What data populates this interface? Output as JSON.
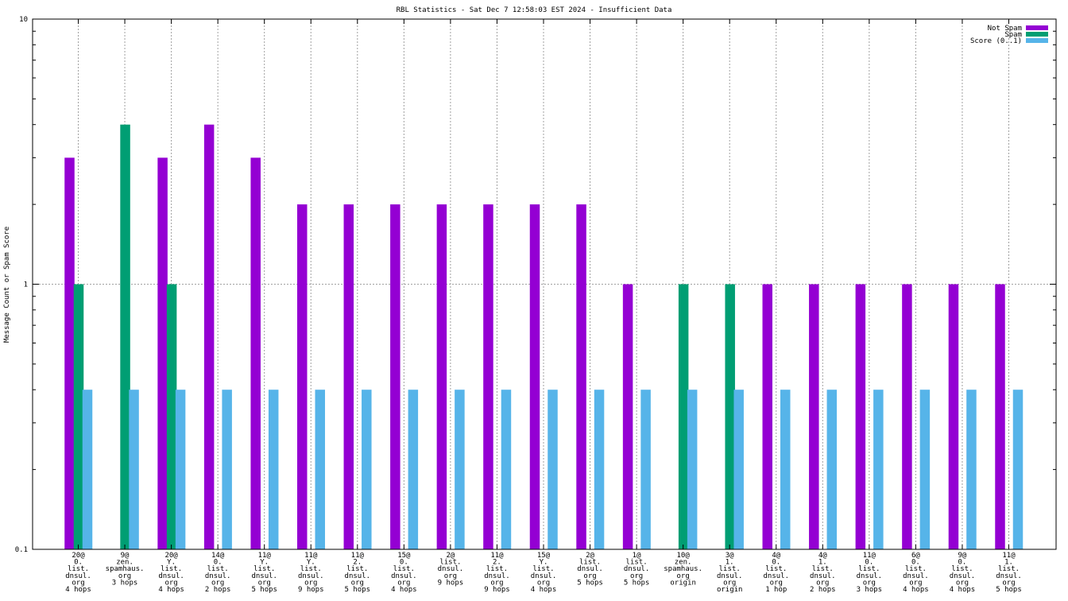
{
  "chart_data": {
    "type": "bar",
    "title": "RBL Statistics - Sat Dec  7 12:58:03 EST 2024 - Insufficient Data",
    "xlabel": "",
    "ylabel": "Message Count or Spam Score",
    "y_scale": "log",
    "ylim": [
      0.1,
      10
    ],
    "y_ticks": [
      "0.1",
      "1",
      "10"
    ],
    "grid": true,
    "legend_position": "top-right",
    "categories": [
      [
        "20@",
        "0.",
        "list.",
        "dnsul.",
        "org",
        "4 hops"
      ],
      [
        "9@",
        "zen.",
        "spamhaus.",
        "org",
        "3 hops"
      ],
      [
        "20@",
        "Y.",
        "list.",
        "dnsul.",
        "org",
        "4 hops"
      ],
      [
        "14@",
        "0.",
        "list.",
        "dnsul.",
        "org",
        "2 hops"
      ],
      [
        "11@",
        "Y.",
        "list.",
        "dnsul.",
        "org",
        "5 hops"
      ],
      [
        "11@",
        "Y.",
        "list.",
        "dnsul.",
        "org",
        "9 hops"
      ],
      [
        "11@",
        "2.",
        "list.",
        "dnsul.",
        "org",
        "5 hops"
      ],
      [
        "15@",
        "0.",
        "list.",
        "dnsul.",
        "org",
        "4 hops"
      ],
      [
        "2@",
        "list.",
        "dnsul.",
        "org",
        "9 hops"
      ],
      [
        "11@",
        "2.",
        "list.",
        "dnsul.",
        "org",
        "9 hops"
      ],
      [
        "15@",
        "Y.",
        "list.",
        "dnsul.",
        "org",
        "4 hops"
      ],
      [
        "2@",
        "list.",
        "dnsul.",
        "org",
        "5 hops"
      ],
      [
        "1@",
        "list.",
        "dnsul.",
        "org",
        "5 hops"
      ],
      [
        "10@",
        "zen.",
        "spamhaus.",
        "org",
        "origin"
      ],
      [
        "3@",
        "1.",
        "list.",
        "dnsul.",
        "org",
        "origin"
      ],
      [
        "4@",
        "0.",
        "list.",
        "dnsul.",
        "org",
        "1 hop"
      ],
      [
        "4@",
        "1.",
        "list.",
        "dnsul.",
        "org",
        "2 hops"
      ],
      [
        "11@",
        "0.",
        "list.",
        "dnsul.",
        "org",
        "3 hops"
      ],
      [
        "6@",
        "0.",
        "list.",
        "dnsul.",
        "org",
        "4 hops"
      ],
      [
        "9@",
        "0.",
        "list.",
        "dnsul.",
        "org",
        "4 hops"
      ],
      [
        "11@",
        "1.",
        "list.",
        "dnsul.",
        "org",
        "5 hops"
      ]
    ],
    "series": [
      {
        "name": "Not Spam",
        "color": "#9400d3",
        "values": [
          3,
          0,
          3,
          4,
          3,
          2,
          2,
          2,
          2,
          2,
          2,
          2,
          1,
          0,
          0,
          1,
          1,
          1,
          1,
          1,
          1
        ]
      },
      {
        "name": "Spam",
        "color": "#009e73",
        "values": [
          1,
          4,
          1,
          0,
          0,
          0,
          0,
          0,
          0,
          0,
          0,
          0,
          0,
          1,
          1,
          0,
          0,
          0,
          0,
          0,
          0
        ]
      },
      {
        "name": "Score (0..1)",
        "color": "#56b4e9",
        "values": [
          0.4,
          0.4,
          0.4,
          0.4,
          0.4,
          0.4,
          0.4,
          0.4,
          0.4,
          0.4,
          0.4,
          0.4,
          0.4,
          0.4,
          0.4,
          0.4,
          0.4,
          0.4,
          0.4,
          0.4,
          0.4
        ]
      }
    ]
  }
}
